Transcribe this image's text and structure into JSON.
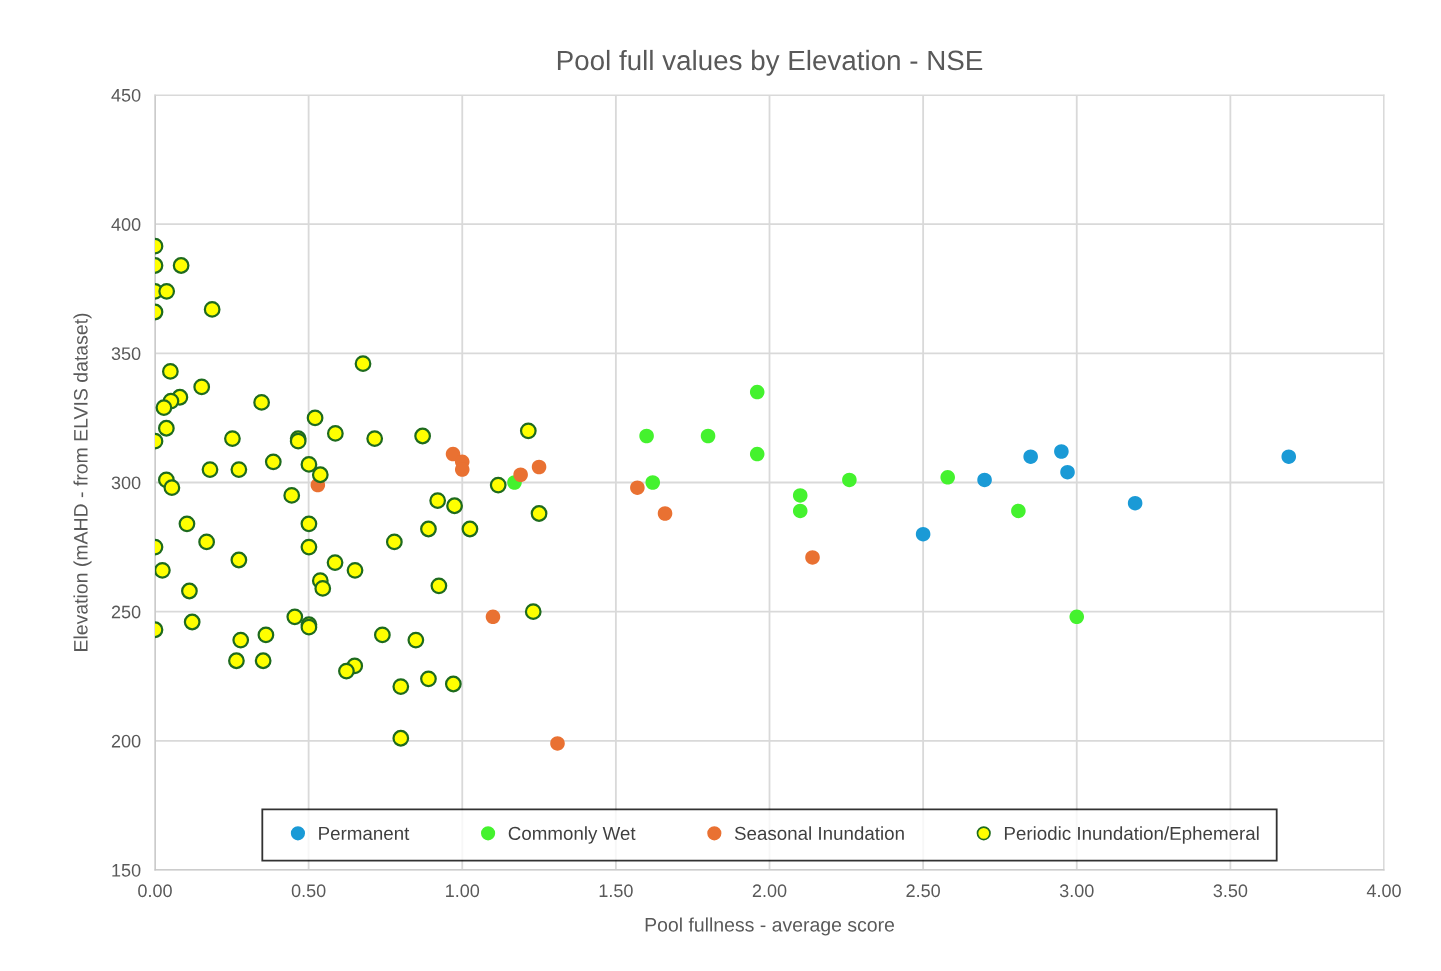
{
  "chart_data": {
    "type": "scatter",
    "title": "Pool full values by Elevation - NSE",
    "xlabel": "Pool fullness - average score",
    "ylabel": "Elevation (mAHD - from ELVIS dataset)",
    "xlim": [
      0,
      4
    ],
    "ylim": [
      150,
      450
    ],
    "xticks": [
      {
        "value": 0,
        "label": "0.00"
      },
      {
        "value": 0.5,
        "label": "0.50"
      },
      {
        "value": 1,
        "label": "1.00"
      },
      {
        "value": 1.5,
        "label": "1.50"
      },
      {
        "value": 2,
        "label": "2.00"
      },
      {
        "value": 2.5,
        "label": "2.50"
      },
      {
        "value": 3,
        "label": "3.00"
      },
      {
        "value": 3.5,
        "label": "3.50"
      },
      {
        "value": 4,
        "label": "4.00"
      }
    ],
    "yticks": [
      150,
      200,
      250,
      300,
      350,
      400,
      450
    ],
    "grid": true,
    "legend": "bottom",
    "marker": "circle",
    "series": [
      {
        "name": "Permanent",
        "color": "#1a9ad6",
        "x": [
          2.5,
          2.7,
          2.85,
          2.95,
          2.97,
          3.19,
          3.69
        ],
        "values": [
          280,
          301,
          310,
          312,
          304,
          292,
          310
        ]
      },
      {
        "name": "Commonly Wet",
        "color": "#44f22e",
        "x": [
          1.17,
          1.6,
          1.62,
          1.8,
          1.96,
          1.96,
          2.1,
          2.1,
          2.26,
          2.58,
          2.81,
          3.0
        ],
        "values": [
          300,
          318,
          300,
          318,
          335,
          311,
          295,
          289,
          301,
          302,
          289,
          248
        ]
      },
      {
        "name": "Seasonal Inundation",
        "color": "#e97132",
        "x": [
          0.53,
          0.97,
          1.0,
          1.0,
          1.1,
          1.19,
          1.25,
          1.31,
          1.57,
          1.66,
          2.14
        ],
        "values": [
          299,
          311,
          308,
          305,
          248,
          303,
          306,
          199,
          298,
          288,
          271
        ]
      },
      {
        "name": "Periodic Inundation/Ephemeral",
        "color": "#ffff00",
        "x": [
          0.0,
          0.0,
          0.085,
          0.0,
          0.038,
          0.0,
          0.186,
          0.677,
          0.05,
          0.152,
          0.081,
          0.052,
          0.029,
          0.347,
          0.521,
          0.037,
          0.0,
          0.252,
          0.466,
          0.466,
          0.587,
          0.715,
          0.871,
          1.215,
          0.179,
          0.273,
          0.385,
          0.501,
          0.538,
          0.037,
          0.055,
          0.445,
          1.117,
          0.92,
          0.975,
          1.25,
          0.104,
          0.501,
          0.168,
          0.0,
          0.501,
          0.779,
          0.89,
          1.025,
          0.273,
          0.586,
          0.651,
          0.024,
          0.538,
          0.546,
          0.924,
          0.112,
          1.231,
          0.455,
          0.121,
          0.0,
          0.501,
          0.501,
          0.361,
          0.279,
          0.74,
          0.849,
          0.265,
          0.352,
          0.65,
          0.623,
          0.8,
          0.89,
          0.971,
          0.8
        ],
        "values": [
          391.5,
          384,
          384,
          374,
          374,
          366,
          367,
          346,
          343,
          337,
          333,
          331.5,
          329,
          331,
          325,
          321,
          316,
          317,
          317,
          316,
          319,
          317,
          318,
          320,
          305,
          305,
          308,
          307,
          303,
          301,
          298,
          295,
          299,
          293,
          291,
          288,
          284,
          284,
          277,
          275,
          275,
          277,
          282,
          282,
          270,
          269,
          266,
          266,
          262,
          259,
          260,
          258,
          250,
          248,
          246,
          243,
          245,
          244,
          241,
          239,
          241,
          239,
          231,
          231,
          229,
          227,
          221,
          224,
          222,
          201
        ]
      }
    ]
  }
}
